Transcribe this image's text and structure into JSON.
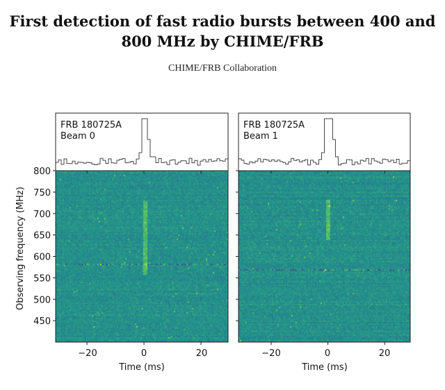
{
  "paper": {
    "title_line1": "First detection of fast radio bursts between 400 and",
    "title_line2": "800 MHz by CHIME/FRB",
    "author": "CHIME/FRB Collaboration"
  },
  "chart_data": [
    {
      "type": "heatmap",
      "panel": "left",
      "annotation_line1": "FRB 180725A",
      "annotation_line2": "Beam 0",
      "xlabel": "Time (ms)",
      "ylabel": "Observing frequency (MHz)",
      "xlim": [
        -31,
        29.5
      ],
      "ylim": [
        400,
        800
      ],
      "xticks": [
        "−20",
        "0",
        "20"
      ],
      "yticks": [
        "800",
        "750",
        "700",
        "650",
        "600",
        "550",
        "500",
        "450"
      ],
      "colormap": "viridis",
      "burst_time_ms": 0,
      "burst_freq_range_mhz": [
        560,
        730
      ],
      "rfi_line_mhz": 583,
      "profile": "time series with peak at 0 ms above the noise floor"
    },
    {
      "type": "heatmap",
      "panel": "right",
      "annotation_line1": "FRB 180725A",
      "annotation_line2": "Beam 1",
      "xlabel": "Time (ms)",
      "xlim": [
        -31.5,
        29
      ],
      "ylim": [
        400,
        800
      ],
      "xticks": [
        "−20",
        "0",
        "20"
      ],
      "colormap": "viridis",
      "burst_time_ms": 0,
      "burst_freq_range_mhz": [
        640,
        735
      ],
      "rfi_line_mhz": 570,
      "profile": "time series with peak at 0 ms above the noise floor"
    }
  ]
}
